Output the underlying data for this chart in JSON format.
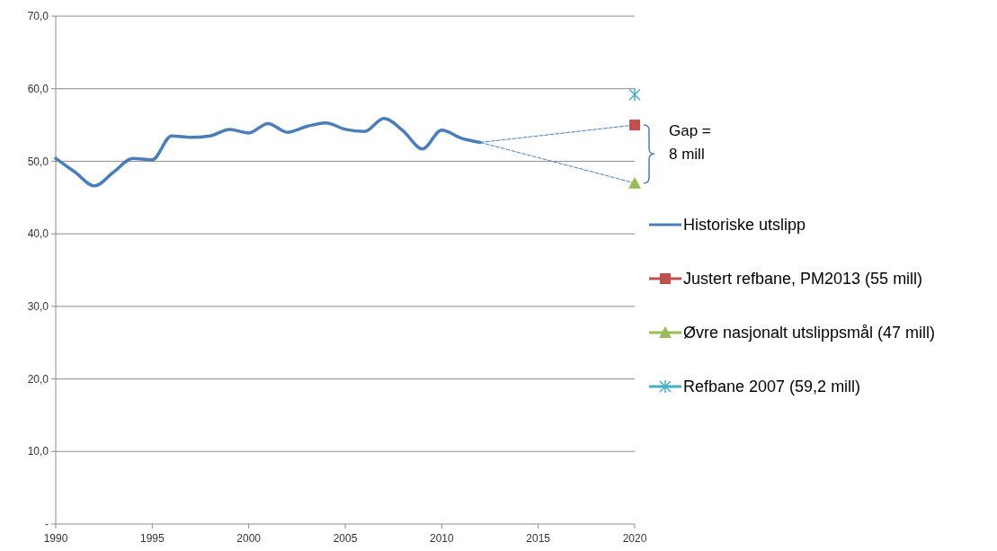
{
  "chart_data": {
    "type": "line",
    "xlim": [
      1990,
      2020
    ],
    "xticks": [
      1990,
      1995,
      2000,
      2005,
      2010,
      2015,
      2020
    ],
    "ylim": [
      0,
      70
    ],
    "yticks": [
      {
        "value": 0,
        "label": "-"
      },
      {
        "value": 10,
        "label": "10,0"
      },
      {
        "value": 20,
        "label": "20,0"
      },
      {
        "value": 30,
        "label": "30,0"
      },
      {
        "value": 40,
        "label": "40,0"
      },
      {
        "value": 50,
        "label": "50,0"
      },
      {
        "value": 60,
        "label": "60,0"
      },
      {
        "value": 70,
        "label": "70,0"
      }
    ],
    "grid": "y",
    "legend": "right",
    "annotations": [
      "Gap = 8 mill"
    ],
    "series": [
      {
        "name": "Historiske utslipp",
        "color": "#4a7ebb",
        "marker": "none",
        "line_style": "solid",
        "x": [
          1990,
          1991,
          1992,
          1993,
          1994,
          1995,
          1996,
          1997,
          1998,
          1999,
          2000,
          2001,
          2002,
          2003,
          2004,
          2005,
          2006,
          2007,
          2008,
          2009,
          2010,
          2011,
          2012
        ],
        "values": [
          50.4,
          48.5,
          46.6,
          48.5,
          50.4,
          50.2,
          53.5,
          53.3,
          53.5,
          54.4,
          53.9,
          55.2,
          54.0,
          54.8,
          55.3,
          54.4,
          54.1,
          55.9,
          54.2,
          51.7,
          54.3,
          53.2,
          52.6
        ]
      },
      {
        "color": "#4a7ebb",
        "marker": "none",
        "line_style": "dashed",
        "x": [
          2012,
          2020
        ],
        "values": [
          52.6,
          55
        ]
      },
      {
        "color": "#4a7ebb",
        "marker": "none",
        "line_style": "dashed",
        "x": [
          2012,
          2020
        ],
        "values": [
          52.6,
          47
        ]
      },
      {
        "name": "Justert refbane, PM2013 (55 mill)",
        "color": "#c0504d",
        "marker": "square",
        "line_style": "solid",
        "x": [
          2020
        ],
        "values": [
          55
        ]
      },
      {
        "name": "Øvre nasjonalt utslippsmål (47 mill)",
        "color": "#9bbb59",
        "marker": "triangle",
        "line_style": "solid",
        "x": [
          2020
        ],
        "values": [
          47
        ]
      },
      {
        "name": "Refbane 2007 (59,2 mill)",
        "color": "#4bacc6",
        "marker": "cross",
        "line_style": "solid",
        "x": [
          2020
        ],
        "values": [
          59.2
        ]
      }
    ]
  }
}
